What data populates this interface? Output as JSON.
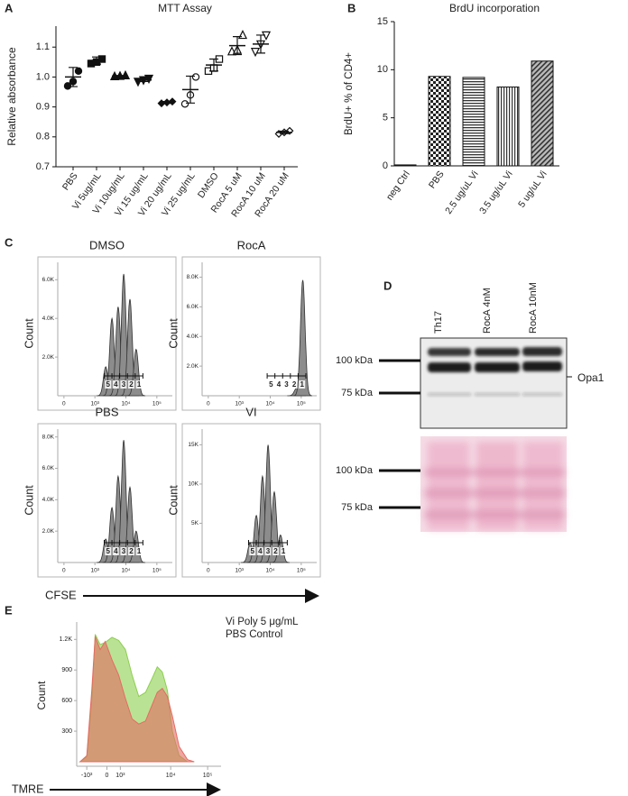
{
  "chart_data": [
    {
      "panel": "A",
      "type": "dot",
      "title": "MTT Assay",
      "y_label": "Relative absorbance",
      "categories": [
        "PBS",
        "Vi 5ug/mL",
        "Vi 10ug/mL",
        "Vi 15 ug/mL",
        "Vi 20 ug/mL",
        "Vi 25 ug/mL",
        "DMSO",
        "RocA 5 uM",
        "RocA 10 uM",
        "RocA 20 uM"
      ],
      "values": [
        [
          0.97,
          1.02,
          0.985
        ],
        [
          1.045,
          1.06,
          1.05
        ],
        [
          1.002,
          1.005,
          1.003
        ],
        [
          0.985,
          0.995,
          0.99
        ],
        [
          0.912,
          0.918,
          0.915
        ],
        [
          0.91,
          1.0,
          0.94
        ],
        [
          1.02,
          1.06,
          1.03
        ],
        [
          1.085,
          1.14,
          1.09
        ],
        [
          1.085,
          1.14,
          1.11
        ],
        [
          0.81,
          0.82,
          0.815
        ]
      ],
      "means": [
        1.0,
        1.055,
        1.003,
        0.99,
        0.915,
        0.958,
        1.04,
        1.105,
        1.11,
        0.815
      ],
      "sem": [
        0.032,
        0.012,
        0.002,
        0.005,
        0.003,
        0.045,
        0.02,
        0.03,
        0.03,
        0.004
      ],
      "markers": [
        "circle-filled",
        "square-filled",
        "triangle-filled",
        "triangle-down-filled",
        "diamond-filled",
        "circle-open",
        "square-open",
        "triangle-open",
        "triangle-down-open",
        "diamond-open"
      ],
      "color": "#111",
      "ylim": [
        0.7,
        1.17
      ],
      "yticks": [
        0.7,
        0.8,
        0.9,
        {
          "value": 1,
          "label": "1.0"
        },
        1.1
      ]
    },
    {
      "panel": "B",
      "type": "bar",
      "title": "BrdU incorporation",
      "y_label": "BrdU+ % of CD4+",
      "categories": [
        "neg Ctrl",
        "PBS",
        "2.5 ug/uL Vi",
        "3.5 ug/uL Vi",
        "5 ug/uL Vi"
      ],
      "values": [
        0.1,
        9.3,
        9.2,
        8.2,
        10.9
      ],
      "patterns": [
        "solid",
        "checker",
        "hlines",
        "vlines",
        "diagonal"
      ],
      "ylim": [
        0,
        15
      ],
      "yticks": [
        0,
        5,
        10,
        15
      ]
    },
    {
      "panel": "C",
      "type": "flow",
      "y_label": "Count",
      "x_label": "CFSE",
      "xlim": [
        1.8,
        5.5
      ],
      "xticks": [
        {
          "value": 2,
          "label": "0"
        },
        {
          "value": 3,
          "label": "10³"
        },
        {
          "value": 4,
          "label": "10⁴"
        },
        {
          "value": 5,
          "label": "10⁵"
        }
      ],
      "color": "#8c8c8c",
      "panels": [
        {
          "title": "DMSO",
          "x": [
            3.35,
            3.55,
            3.75,
            3.93,
            4.13,
            4.33
          ],
          "values": [
            1500,
            4000,
            4600,
            6300,
            5000,
            2400
          ],
          "ylim": [
            0,
            6900
          ],
          "yticks": [
            {
              "value": 2000,
              "label": "2.0K"
            },
            {
              "value": 4000,
              "label": "4.0K"
            },
            {
              "value": 6000,
              "label": "6.0K"
            }
          ],
          "gates": [
            "5",
            "4",
            "3",
            "2",
            "1"
          ],
          "gate_xlim": [
            3.3,
            4.55
          ]
        },
        {
          "title": "RocA",
          "x": [
            4.85,
            5.05
          ],
          "values": [
            500,
            7800
          ],
          "ylim": [
            0,
            9000
          ],
          "yticks": [
            {
              "value": 2000,
              "label": "2.0K"
            },
            {
              "value": 4000,
              "label": "4.0K"
            },
            {
              "value": 6000,
              "label": "6.0K"
            },
            {
              "value": 8000,
              "label": "8.0K"
            }
          ],
          "gates": [
            "5",
            "4",
            "3",
            "2",
            "1"
          ],
          "gate_xlim": [
            3.9,
            5.15
          ]
        },
        {
          "title": "PBS",
          "x": [
            3.35,
            3.55,
            3.75,
            3.93,
            4.13,
            4.33
          ],
          "values": [
            1500,
            3500,
            5500,
            7800,
            4800,
            2000
          ],
          "ylim": [
            0,
            8500
          ],
          "yticks": [
            {
              "value": 2000,
              "label": "2.0K"
            },
            {
              "value": 4000,
              "label": "4.0K"
            },
            {
              "value": 6000,
              "label": "6.0K"
            },
            {
              "value": 8000,
              "label": "8.0K"
            }
          ],
          "gates": [
            "5",
            "4",
            "3",
            "2",
            "1"
          ],
          "gate_xlim": [
            3.3,
            4.55
          ]
        },
        {
          "title": "VI",
          "x": [
            3.35,
            3.55,
            3.75,
            3.93,
            4.13,
            4.33
          ],
          "values": [
            2500,
            6000,
            11000,
            15000,
            9000,
            3500
          ],
          "ylim": [
            0,
            17000
          ],
          "yticks": [
            {
              "value": 5000,
              "label": "5K"
            },
            {
              "value": 10000,
              "label": "10K"
            },
            {
              "value": 15000,
              "label": "15K"
            }
          ],
          "gates": [
            "5",
            "4",
            "3",
            "2",
            "1"
          ],
          "gate_xlim": [
            3.3,
            4.55
          ]
        }
      ]
    },
    {
      "panel": "E",
      "type": "area",
      "y_label": "Count",
      "x_label": "TMRE",
      "x": [
        -1.6,
        -1.2,
        -0.9,
        -0.7,
        -0.4,
        -0.1,
        0.3,
        0.7,
        1.1,
        1.5,
        1.9,
        2.3,
        2.7,
        3.0,
        3.3,
        3.6,
        3.9,
        4.3,
        4.8,
        5.2
      ],
      "series": [
        {
          "name": "Vi Poly 5 μg/mL",
          "color": "#8ccf4d",
          "values": [
            0,
            50,
            600,
            1250,
            1150,
            1170,
            1220,
            1190,
            1100,
            850,
            640,
            680,
            820,
            930,
            880,
            700,
            300,
            60,
            0,
            0
          ]
        },
        {
          "name": "PBS Control",
          "color": "#e56b63",
          "values": [
            0,
            60,
            700,
            1230,
            1100,
            1180,
            1000,
            850,
            620,
            420,
            370,
            400,
            560,
            680,
            720,
            640,
            450,
            150,
            20,
            0
          ]
        }
      ],
      "xlim": [
        -1.8,
        6.8
      ],
      "xticks": [
        {
          "value": -1.2,
          "label": "-10³"
        },
        {
          "value": 0,
          "label": "0"
        },
        {
          "value": 0.8,
          "label": "10³"
        },
        {
          "value": 3.8,
          "label": "10⁴"
        },
        {
          "value": 6.0,
          "label": "10⁵"
        }
      ],
      "ylim": [
        0,
        1300
      ],
      "yticks": [
        300,
        600,
        900,
        {
          "value": 1200,
          "label": "1.2K"
        }
      ]
    }
  ],
  "blot": {
    "panel": "D",
    "lanes": [
      "Th17",
      "RocA 4nM",
      "RocA 10nM"
    ],
    "markers": [
      "100 kDa",
      "75 kDa"
    ],
    "protein": "Opa1",
    "stain_markers": [
      "100 kDa",
      "75 kDa"
    ]
  }
}
